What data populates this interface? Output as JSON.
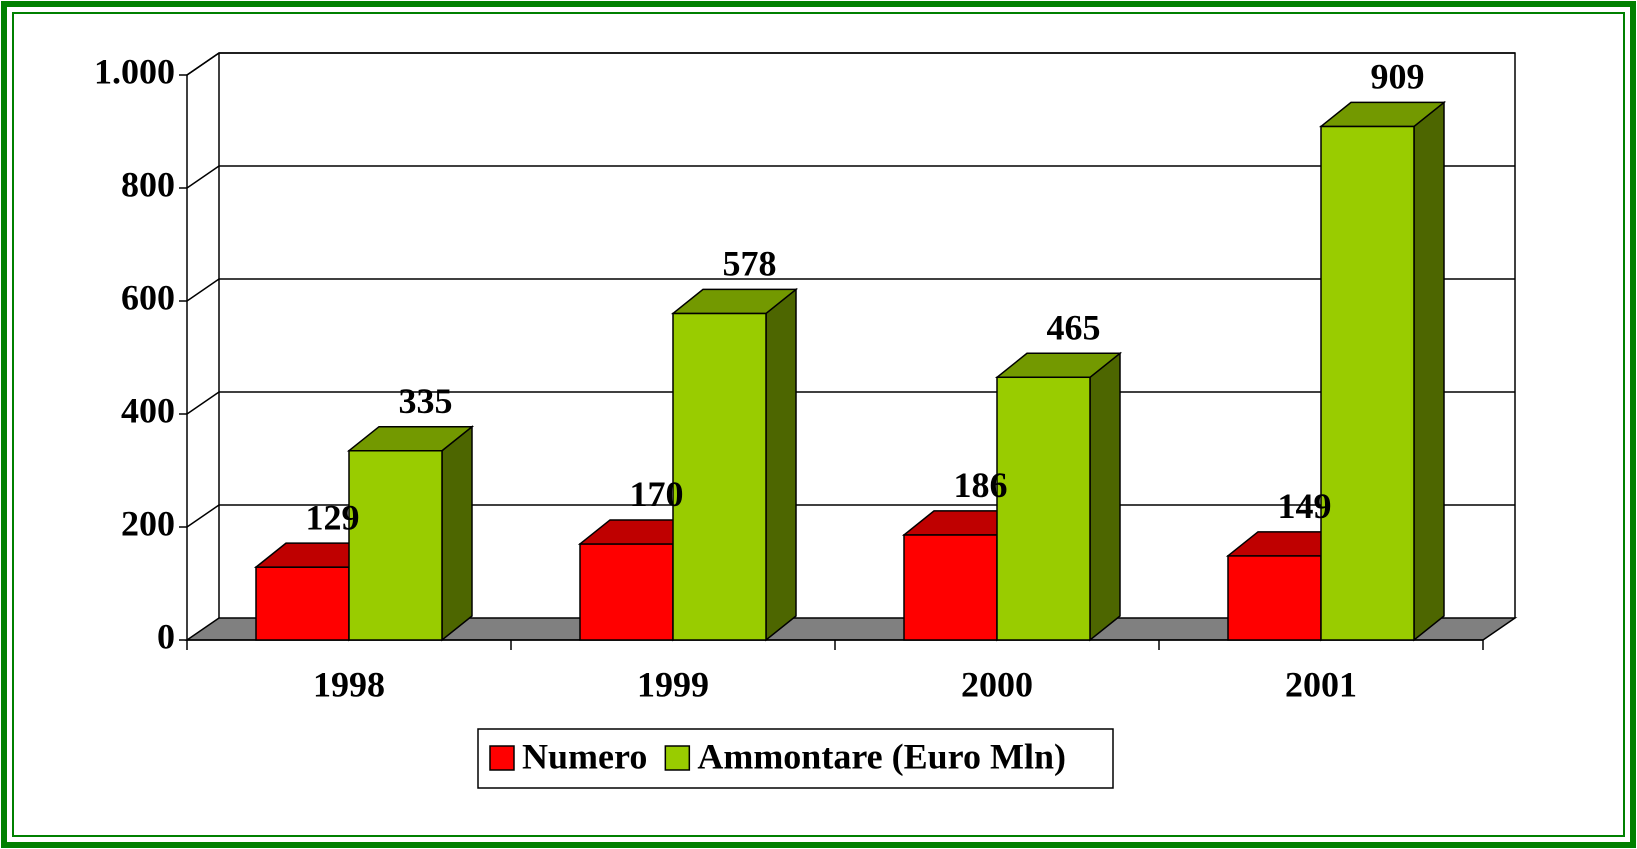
{
  "chart_data": {
    "type": "bar3d",
    "categories": [
      "1998",
      "1999",
      "2000",
      "2001"
    ],
    "series": [
      {
        "name": "Numero",
        "color": "#ff0000",
        "values": [
          129,
          170,
          186,
          149
        ]
      },
      {
        "name": "Ammontare (Euro Mln)",
        "color": "#99cc00",
        "values": [
          335,
          578,
          465,
          909
        ]
      }
    ],
    "ylim": [
      0,
      1000
    ],
    "yticks": [
      0,
      200,
      400,
      600,
      800,
      {
        "value": 1000,
        "label": "1.000"
      }
    ],
    "grid": true,
    "legend": "bottom"
  }
}
